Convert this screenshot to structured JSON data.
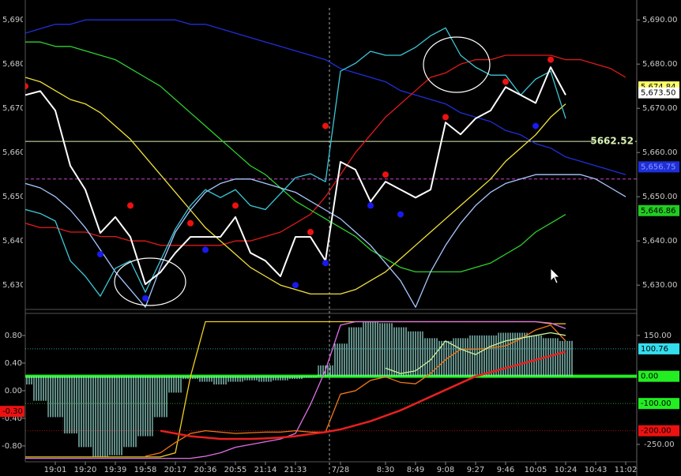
{
  "chart_data": [
    {
      "type": "line",
      "ylim": [
        5624.5,
        5694.5
      ],
      "yticks": [
        {
          "value": 5630,
          "label": "5,630.00"
        },
        {
          "value": 5640,
          "label": "5,640.00"
        },
        {
          "value": 5650,
          "label": "5,650.00"
        },
        {
          "value": 5660,
          "label": "5,660.00"
        },
        {
          "value": 5670,
          "label": "5,670.00"
        },
        {
          "value": 5680,
          "label": "5,680.00"
        },
        {
          "value": 5690,
          "label": "5,690.00"
        }
      ],
      "series": [
        {
          "color": "#1f2fd8",
          "values": [
            5687,
            5688,
            5689,
            5689,
            5690,
            5690,
            5690,
            5690,
            5690,
            5690,
            5690,
            5689,
            5689,
            5688,
            5687,
            5686,
            5685,
            5684,
            5683,
            5682,
            5681,
            5679,
            5678,
            5677,
            5676,
            5674,
            5673,
            5672,
            5671,
            5669,
            5668,
            5667,
            5665,
            5664,
            5662,
            5661,
            5659,
            5658,
            5657,
            5656,
            5655
          ]
        },
        {
          "color": "#e01a1a",
          "values": [
            5644,
            5643,
            5643,
            5642,
            5642,
            5641,
            5641,
            5640,
            5640,
            5639,
            5639,
            5639,
            5639,
            5639,
            5640,
            5640,
            5641,
            5642,
            5644,
            5646,
            5650,
            5655,
            5660,
            5664,
            5668,
            5671,
            5674,
            5677,
            5678,
            5680,
            5681,
            5681,
            5682,
            5682,
            5682,
            5682,
            5681,
            5681,
            5680,
            5679,
            5677
          ]
        },
        {
          "color": "#f2e23a",
          "values": [
            5677,
            5676,
            5674,
            5672,
            5671,
            5669,
            5666,
            5663,
            5659,
            5655,
            5651,
            5647,
            5643,
            5640,
            5637,
            5634,
            5632,
            5630,
            5629,
            5628,
            5628,
            5628,
            5629,
            5631,
            5633,
            5636,
            5639,
            5642,
            5645,
            5648,
            5651,
            5654,
            5658,
            5661,
            5664,
            5668,
            5671,
            null,
            null,
            null,
            null
          ]
        },
        {
          "color": "#2ed12e",
          "values": [
            5685,
            5685,
            5684,
            5684,
            5683,
            5682,
            5681,
            5679,
            5677,
            5675,
            5672,
            5669,
            5666,
            5663,
            5660,
            5657,
            5655,
            5652,
            5649,
            5647,
            5645,
            5643,
            5641,
            5638,
            5636,
            5634,
            5633,
            5633,
            5633,
            5633,
            5634,
            5635,
            5637,
            5639,
            5642,
            5644,
            5646,
            null,
            null,
            null,
            null
          ]
        },
        {
          "color": "#a8c8ff",
          "values": [
            5653,
            5652,
            5650,
            5647,
            5643,
            5638,
            5633,
            5629,
            5625,
            5634,
            5642,
            5647,
            5651,
            5653,
            5654,
            5654,
            5653,
            5652,
            5651,
            5649,
            5647,
            5645,
            5642,
            5639,
            5635,
            5631,
            5625,
            5633,
            5639,
            5644,
            5648,
            5651,
            5653,
            5654,
            5655,
            5655,
            5655,
            5655,
            5654,
            5652,
            5650
          ]
        },
        {
          "color": "#3cc8d8",
          "values": [
            5647.1,
            5646.2,
            5644.5,
            5635.5,
            5632.0,
            5627.5,
            5633.8,
            5635.5,
            5628.4,
            5635.5,
            5642.7,
            5648.0,
            5651.6,
            5649.8,
            5651.6,
            5648.0,
            5647.1,
            5650.7,
            5654.3,
            5655.2,
            5653.4,
            5678.4,
            5680.2,
            5682.9,
            5682.0,
            5682.0,
            5683.8,
            5686.4,
            5688.2,
            5682.0,
            5679.3,
            5677.5,
            5677.5,
            5673.0,
            5676.6,
            5678.4,
            5667.7,
            null,
            null,
            null,
            null
          ]
        },
        {
          "color": "#ffffff",
          "values": [
            5673.0,
            5673.9,
            5669.5,
            5657.0,
            5651.6,
            5641.8,
            5645.4,
            5640.9,
            5630.2,
            5632.9,
            5637.3,
            5640.9,
            5640.9,
            5640.9,
            5645.4,
            5637.3,
            5635.5,
            5632.0,
            5640.9,
            5640.9,
            5635.5,
            5657.9,
            5656.1,
            5648.9,
            5653.4,
            5651.6,
            5649.8,
            5651.6,
            5666.8,
            5664.1,
            5667.7,
            5669.5,
            5674.8,
            5673.0,
            5671.2,
            5679.3,
            5673.0,
            null,
            null,
            null,
            null
          ]
        },
        {
          "type": "scatter",
          "color": "#ee1111",
          "values": [
            5675,
            null,
            null,
            null,
            null,
            null,
            null,
            5648,
            null,
            null,
            null,
            5644,
            null,
            null,
            5648,
            null,
            null,
            null,
            null,
            5642,
            5666,
            null,
            null,
            null,
            5655,
            null,
            null,
            null,
            5668,
            null,
            null,
            null,
            5676,
            null,
            null,
            5681,
            null,
            null,
            null,
            null,
            null
          ]
        },
        {
          "type": "scatter",
          "color": "#1a1aee",
          "values": [
            null,
            null,
            null,
            null,
            null,
            5637,
            null,
            null,
            5627,
            null,
            null,
            null,
            5638,
            null,
            null,
            null,
            null,
            null,
            5630,
            null,
            5635,
            null,
            null,
            5648,
            null,
            5646,
            null,
            null,
            null,
            null,
            null,
            null,
            null,
            null,
            5666,
            null,
            null,
            null,
            null,
            null,
            null
          ]
        }
      ],
      "hlines": [
        {
          "value": 5662.52,
          "label": "5662.52",
          "color": "#d9f2b5"
        },
        {
          "value": 5654,
          "color": "#cc44cc",
          "dashed": true
        }
      ],
      "value_boxes": [
        {
          "value": 5674.84,
          "label": "5,674.84",
          "color": "#ffff66",
          "text_color": "#000000"
        },
        {
          "value": 5673.5,
          "label": "5,673.50",
          "color": "#ffffff",
          "text_color": "#000000"
        },
        {
          "value": 5656.75,
          "label": "5,656.75",
          "color": "#1f2fd8",
          "text_color": "#8899ff"
        },
        {
          "value": 5646.86,
          "label": "5,646.86",
          "color": "#22cc22",
          "text_color": "#000000"
        }
      ]
    },
    {
      "type": "line",
      "categories": [
        null,
        null,
        "19:01",
        null,
        "19:20",
        null,
        "19:39",
        null,
        "19:58",
        null,
        "20:17",
        null,
        "20:36",
        null,
        "20:55",
        null,
        "21:14",
        null,
        "21:33",
        null,
        null,
        "7/28",
        null,
        null,
        "8:30",
        null,
        "8:49",
        null,
        "9:08",
        null,
        "9:27",
        null,
        "9:46",
        null,
        "10:05",
        null,
        "10:24",
        null,
        "10:43",
        null,
        "11:02"
      ],
      "ylim": [
        -1.03,
        1.12
      ],
      "yticks": [
        {
          "value": -0.8,
          "label": "-0.80"
        },
        {
          "value": -0.4,
          "label": "-0.40"
        },
        {
          "value": 0,
          "label": "0.00"
        },
        {
          "value": 0.4,
          "label": "0.40"
        },
        {
          "value": 0.8,
          "label": "0.80"
        }
      ],
      "y2lim": [
        -314,
        231
      ],
      "y2ticks": [
        {
          "value": -250,
          "label": "-250.00"
        },
        {
          "value": 150,
          "label": "150.00"
        }
      ],
      "series": [
        {
          "type": "bar",
          "axis": "y2",
          "color": "#9fe8e0",
          "values": [
            -30,
            -90,
            -150,
            -210,
            -260,
            -295,
            -290,
            -260,
            -220,
            -150,
            -60,
            -10,
            -20,
            -30,
            -20,
            -15,
            -20,
            -15,
            -10,
            -5,
            40,
            120,
            180,
            200,
            195,
            180,
            165,
            140,
            130,
            140,
            150,
            150,
            160,
            160,
            150,
            140,
            130,
            null,
            null,
            null,
            null
          ]
        },
        {
          "color": "#f0d020",
          "values": [
            -0.96,
            -0.96,
            -0.96,
            -0.96,
            -0.96,
            -0.96,
            -0.96,
            -0.96,
            -0.96,
            -0.96,
            -0.9,
            0.2,
            1.0,
            1.0,
            1.0,
            1.0,
            1.0,
            1.0,
            1.0,
            1.0,
            1.0,
            1.0,
            1.0,
            1.0,
            1.0,
            1.0,
            1.0,
            1.0,
            1.0,
            1.0,
            1.0,
            1.0,
            1.0,
            1.0,
            1.0,
            0.97,
            0.97,
            null,
            null,
            null,
            null
          ]
        },
        {
          "color": "#e070e8",
          "values": [
            -0.98,
            -0.98,
            -0.98,
            -0.98,
            -0.98,
            -0.98,
            -0.98,
            -0.98,
            -0.98,
            -0.98,
            -0.98,
            -0.98,
            -0.95,
            -0.9,
            -0.82,
            -0.78,
            -0.74,
            -0.7,
            -0.62,
            -0.2,
            0.3,
            0.95,
            1.0,
            1.0,
            1.0,
            1.0,
            1.0,
            1.0,
            1.0,
            1.0,
            1.0,
            1.0,
            1.0,
            1.0,
            1.0,
            0.98,
            0.9,
            null,
            null,
            null,
            null
          ]
        },
        {
          "color": "#f07818",
          "values": [
            null,
            null,
            null,
            null,
            null,
            null,
            null,
            null,
            -0.95,
            -0.9,
            -0.75,
            -0.62,
            -0.58,
            -0.6,
            -0.62,
            -0.61,
            -0.6,
            -0.6,
            -0.58,
            -0.6,
            -0.6,
            -0.05,
            0.0,
            0.15,
            0.2,
            0.12,
            0.1,
            0.25,
            0.45,
            0.6,
            0.6,
            0.62,
            0.65,
            0.75,
            0.88,
            0.95,
            0.72,
            null,
            null,
            null,
            null
          ]
        },
        {
          "axis": "y2",
          "color": "#c8f5a0",
          "values": [
            null,
            null,
            null,
            null,
            null,
            null,
            null,
            null,
            null,
            null,
            null,
            null,
            null,
            null,
            null,
            null,
            null,
            null,
            null,
            null,
            null,
            null,
            null,
            null,
            30,
            10,
            20,
            60,
            130,
            100,
            80,
            110,
            130,
            140,
            150,
            160,
            150,
            null,
            null,
            null,
            null
          ]
        },
        {
          "axis": "y2",
          "color": "#e82020",
          "values": [
            null,
            null,
            null,
            null,
            null,
            null,
            null,
            null,
            null,
            -200,
            -210,
            -220,
            -225,
            -230,
            -230,
            -230,
            -228,
            -225,
            -220,
            -212,
            -205,
            -195,
            -180,
            -165,
            -145,
            -125,
            -100,
            -75,
            -50,
            -25,
            0,
            15,
            30,
            45,
            60,
            75,
            90,
            null,
            null,
            null,
            null
          ]
        }
      ],
      "value_boxes": [
        {
          "value": 100.76,
          "label": "100.76",
          "color": "#33ddee",
          "text_color": "#000000",
          "axis": "y2",
          "line": "dotted"
        },
        {
          "value": 0,
          "label": "0.00",
          "color": "#22ee22",
          "text_color": "#000000",
          "axis": "y2",
          "line": "solid"
        },
        {
          "value": -100,
          "label": "-100.00",
          "color": "#22ee22",
          "text_color": "#000000",
          "axis": "y2",
          "line": "dotted"
        },
        {
          "value": -200,
          "label": "-200.00",
          "color": "#ee1111",
          "text_color": "#000000",
          "axis": "y2",
          "line": "dotted"
        },
        {
          "value": -0.3,
          "label": "-0.30",
          "color": "#ee1111",
          "text_color": "#000000",
          "side": "left"
        }
      ]
    }
  ]
}
